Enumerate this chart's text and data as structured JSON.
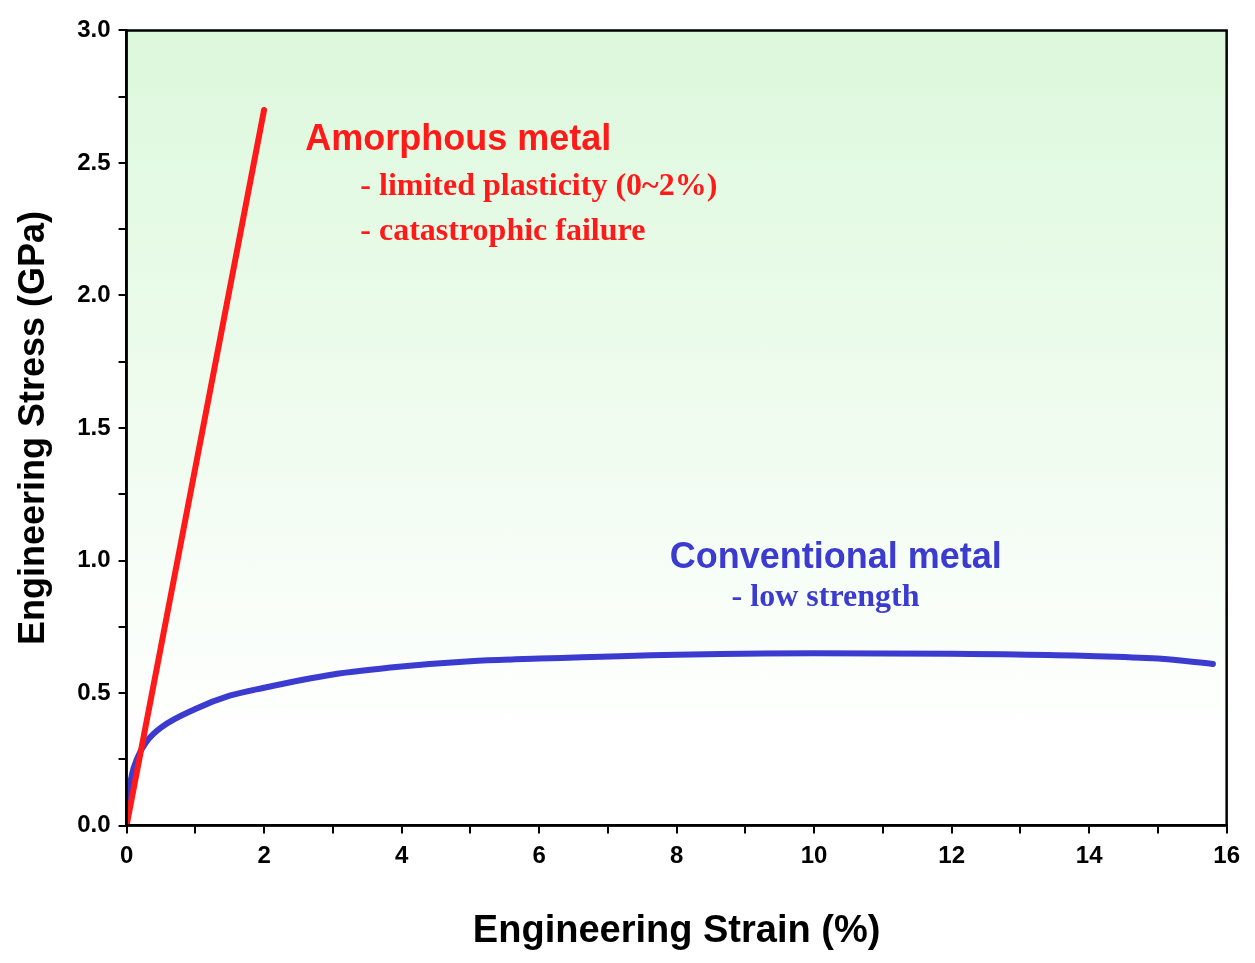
{
  "chart_data": {
    "type": "line",
    "xlabel": "Engineering Strain (%)",
    "ylabel": "Engineering Stress (GPa)",
    "xlim": [
      0,
      16
    ],
    "xticks": [
      0,
      {
        "value": 1,
        "label": null
      },
      2,
      {
        "value": 3,
        "label": null
      },
      4,
      {
        "value": 5,
        "label": null
      },
      6,
      {
        "value": 7,
        "label": null
      },
      8,
      {
        "value": 9,
        "label": null
      },
      10,
      {
        "value": 11,
        "label": null
      },
      12,
      {
        "value": 13,
        "label": null
      },
      14,
      {
        "value": 15,
        "label": null
      },
      16
    ],
    "ylim": [
      0,
      3
    ],
    "yticks": [
      {
        "value": 0,
        "label": "0.0"
      },
      {
        "value": 0.25,
        "label": null
      },
      {
        "value": 0.5,
        "label": "0.5"
      },
      {
        "value": 0.75,
        "label": null
      },
      {
        "value": 1,
        "label": "1.0"
      },
      {
        "value": 1.25,
        "label": null
      },
      {
        "value": 1.5,
        "label": "1.5"
      },
      {
        "value": 1.75,
        "label": null
      },
      {
        "value": 2,
        "label": "2.0"
      },
      {
        "value": 2.25,
        "label": null
      },
      {
        "value": 2.5,
        "label": "2.5"
      },
      {
        "value": 2.75,
        "label": null
      },
      {
        "value": 3,
        "label": "3.0"
      }
    ],
    "grid": false,
    "legend": false,
    "marker": "none",
    "line_style": "solid",
    "series": [
      {
        "name": "Amorphous metal",
        "color": "#ff1a1a",
        "x": [
          0,
          2
        ],
        "values": [
          0,
          2.7
        ]
      },
      {
        "name": "Conventional metal",
        "color": "#3b3bd0",
        "x": [
          0,
          0.05,
          0.15,
          0.3,
          0.5,
          1,
          1.5,
          2,
          3,
          4,
          5,
          6,
          8,
          10,
          12,
          14,
          15,
          15.8
        ],
        "values": [
          0,
          0.15,
          0.25,
          0.32,
          0.37,
          0.44,
          0.49,
          0.52,
          0.57,
          0.6,
          0.62,
          0.63,
          0.645,
          0.65,
          0.648,
          0.64,
          0.63,
          0.61
        ]
      }
    ],
    "annotations": [
      "- limited plasticity (0~2%)",
      "- catastrophic failure",
      "- low strength"
    ]
  }
}
